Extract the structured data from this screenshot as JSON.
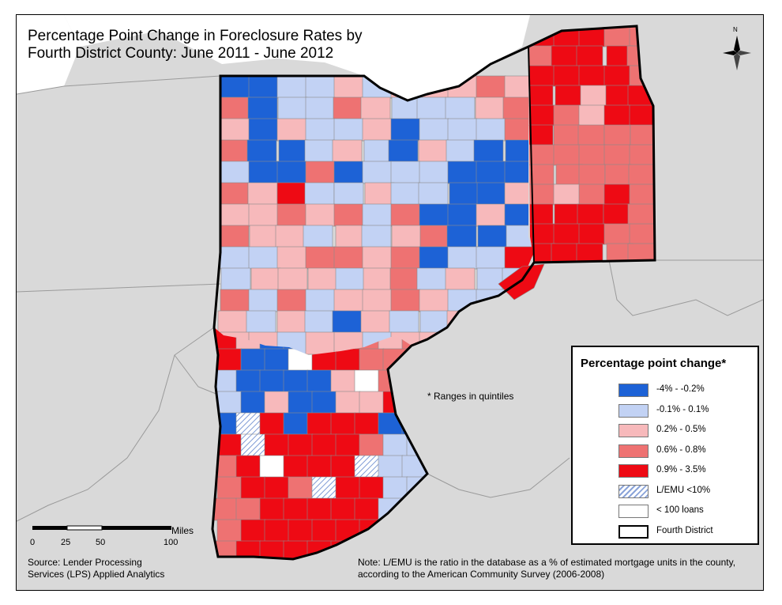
{
  "title": "Percentage Point Change in Foreclosure Rates by Fourth District County: June 2011 - June 2012",
  "colors": {
    "background": "#d9d9d9",
    "water": "#ffffff",
    "class1": "#1d62d6",
    "class2": "#c2d2f4",
    "class3": "#f7b9bb",
    "class4": "#ee7272",
    "class5": "#ee0a14",
    "hatched": "#c8d6f2",
    "few_loans": "#ffffff",
    "district_border": "#000000"
  },
  "legend": {
    "title": "Percentage point change*",
    "items": [
      {
        "label": "-4% - -0.2%",
        "color": "#1d62d6",
        "style": "fill"
      },
      {
        "label": "-0.1% - 0.1%",
        "color": "#c2d2f4",
        "style": "fill"
      },
      {
        "label": "0.2% - 0.5%",
        "color": "#f7b9bb",
        "style": "fill"
      },
      {
        "label": "0.6% - 0.8%",
        "color": "#ee7272",
        "style": "fill"
      },
      {
        "label": "0.9% - 3.5%",
        "color": "#ee0a14",
        "style": "fill"
      },
      {
        "label": "L/EMU <10%",
        "color": "#c8d6f2",
        "style": "hatched"
      },
      {
        "label": "< 100 loans",
        "color": "#ffffff",
        "style": "fill"
      },
      {
        "label": "Fourth District",
        "color": "#ffffff",
        "style": "outline"
      }
    ]
  },
  "ranges_note": "* Ranges in quintiles",
  "scale_bar": {
    "units": "Miles",
    "ticks": [
      "0",
      "25",
      "50",
      "100"
    ]
  },
  "source": [
    "Source: Lender Processing",
    "Services (LPS) Applied Analytics"
  ],
  "note": [
    "Note: L/EMU is the ratio in the database as a % of estimated mortgage units in the county,",
    "according to the American Community Survey (2006-2008)"
  ],
  "north_arrow": {
    "label": "N",
    "icon": "compass-rose-icon"
  }
}
